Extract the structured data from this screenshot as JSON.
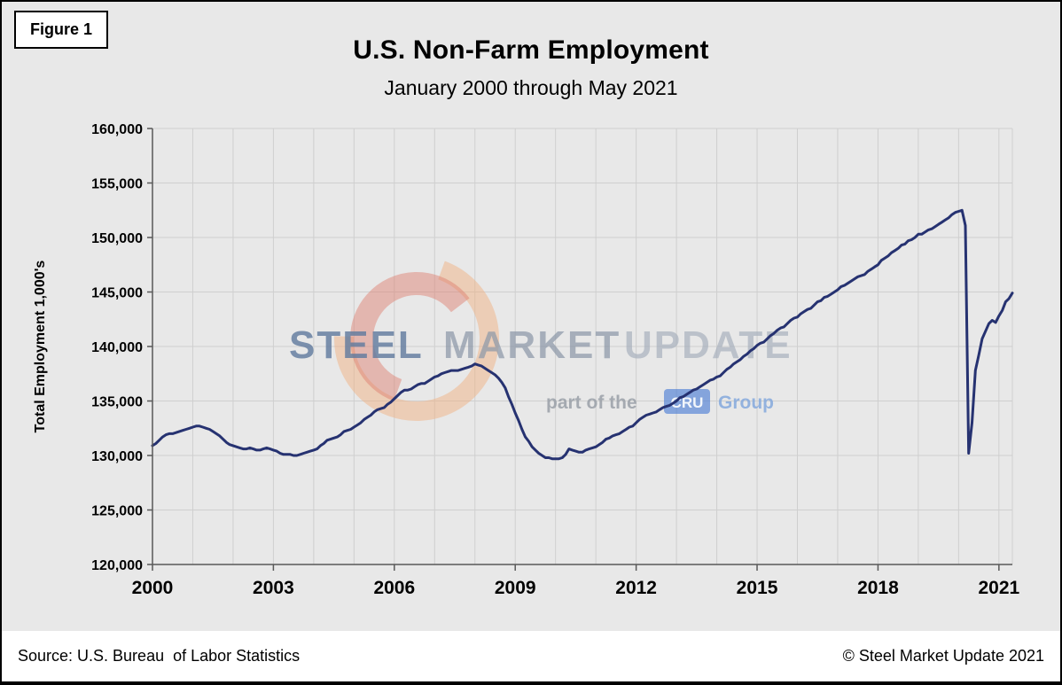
{
  "figure_label": "Figure 1",
  "title": "U.S. Non-Farm Employment",
  "subtitle": "January 2000 through May 2021",
  "y_axis_title": "Total Employment 1,000's",
  "footer": {
    "source": "Source: U.S. Bureau  of Labor Statistics",
    "copyright": "© Steel Market Update 2021"
  },
  "watermark": {
    "steel": "STEEL",
    "market": "MARKET",
    "update": "UPDATE",
    "tagline_prefix": "part of the",
    "cru": "CRU",
    "group": "Group",
    "cru_box_color": "#4e7fd6",
    "logo_outer_color": "#f0b183",
    "logo_inner_color": "#dd7b6b"
  },
  "chart_data": {
    "type": "line",
    "title": "U.S. Non-Farm Employment",
    "subtitle": "January 2000 through May 2021",
    "xlabel": "",
    "ylabel": "Total Employment 1,000's",
    "ylim": [
      120000,
      160000
    ],
    "ytick_step": 5000,
    "xticks": [
      2000,
      2003,
      2006,
      2009,
      2012,
      2015,
      2018,
      2021
    ],
    "x_start_year": 2000,
    "grid": true,
    "legend": false,
    "line_color": "#263271",
    "grid_color": "#cfcfcf",
    "axis_color": "#595959",
    "series": [
      {
        "name": "U.S. Non-Farm Employment (monthly, Jan 2000 - May 2021)",
        "monthly_values": [
          130900,
          131100,
          131400,
          131700,
          131900,
          132000,
          132000,
          132100,
          132200,
          132300,
          132400,
          132500,
          132600,
          132700,
          132700,
          132600,
          132500,
          132400,
          132200,
          132000,
          131800,
          131500,
          131200,
          131000,
          130900,
          130800,
          130700,
          130600,
          130600,
          130700,
          130600,
          130500,
          130500,
          130600,
          130700,
          130600,
          130500,
          130400,
          130200,
          130100,
          130100,
          130100,
          130000,
          130000,
          130100,
          130200,
          130300,
          130400,
          130500,
          130600,
          130900,
          131100,
          131400,
          131500,
          131600,
          131700,
          131900,
          132200,
          132300,
          132400,
          132600,
          132800,
          133000,
          133300,
          133500,
          133700,
          134000,
          134200,
          134300,
          134400,
          134700,
          134900,
          135200,
          135500,
          135800,
          136000,
          136000,
          136100,
          136300,
          136500,
          136600,
          136600,
          136800,
          137000,
          137200,
          137300,
          137500,
          137600,
          137700,
          137800,
          137800,
          137800,
          137900,
          138000,
          138100,
          138200,
          138400,
          138300,
          138200,
          138000,
          137800,
          137600,
          137400,
          137100,
          136700,
          136200,
          135400,
          134700,
          133900,
          133200,
          132400,
          131700,
          131300,
          130800,
          130500,
          130200,
          130000,
          129800,
          129800,
          129700,
          129700,
          129700,
          129800,
          130100,
          130600,
          130500,
          130400,
          130300,
          130300,
          130500,
          130600,
          130700,
          130800,
          131000,
          131200,
          131500,
          131600,
          131800,
          131900,
          132000,
          132200,
          132400,
          132600,
          132700,
          133000,
          133300,
          133500,
          133700,
          133800,
          133900,
          134000,
          134200,
          134400,
          134500,
          134600,
          134800,
          135000,
          135300,
          135400,
          135600,
          135800,
          136000,
          136100,
          136300,
          136500,
          136700,
          136900,
          137000,
          137200,
          137300,
          137600,
          137900,
          138100,
          138400,
          138600,
          138800,
          139100,
          139300,
          139600,
          139800,
          140100,
          140300,
          140400,
          140700,
          141000,
          141200,
          141500,
          141700,
          141800,
          142100,
          142400,
          142600,
          142700,
          143000,
          143200,
          143400,
          143500,
          143800,
          144100,
          144200,
          144500,
          144600,
          144800,
          145000,
          145200,
          145500,
          145600,
          145800,
          146000,
          146200,
          146400,
          146500,
          146600,
          146900,
          147100,
          147300,
          147500,
          147900,
          148100,
          148300,
          148600,
          148800,
          149000,
          149300,
          149400,
          149700,
          149800,
          150000,
          150300,
          150300,
          150500,
          150700,
          150800,
          151000,
          151200,
          151400,
          151600,
          151800,
          152100,
          152300,
          152400,
          152500,
          151100,
          130200,
          133000,
          137800,
          139200,
          140700,
          141400,
          142100,
          142400,
          142200,
          142800,
          143300,
          144100,
          144400,
          144900
        ]
      }
    ]
  }
}
